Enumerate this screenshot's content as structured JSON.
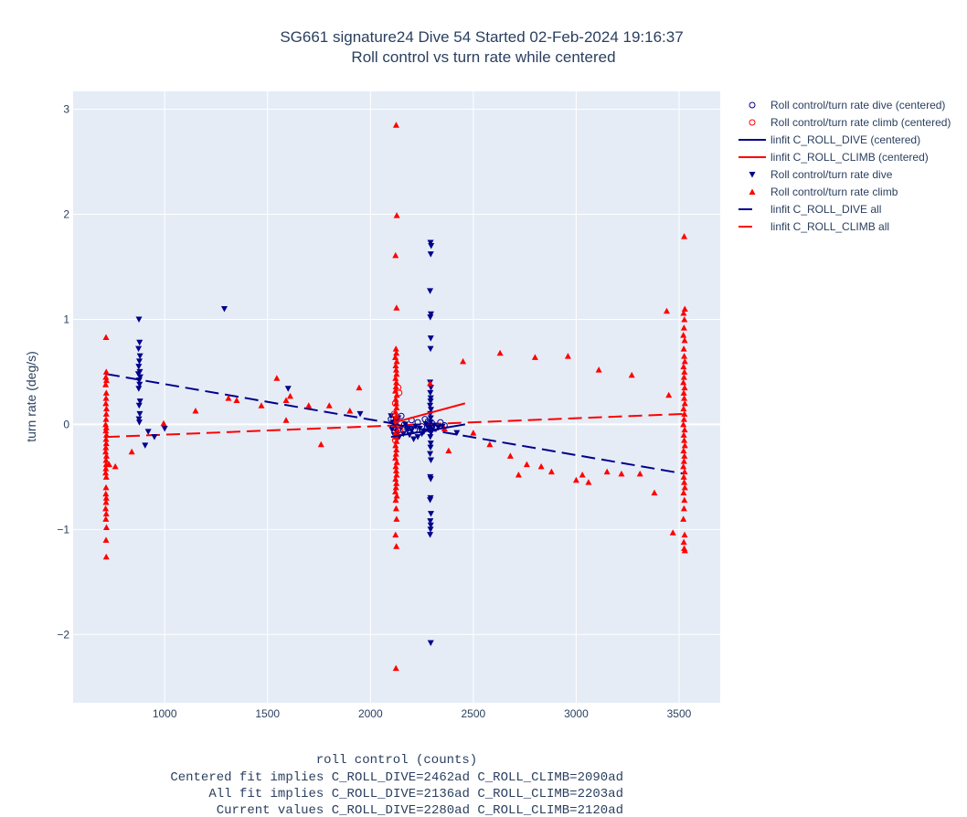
{
  "chart_data": {
    "type": "scatter",
    "title": [
      "SG661 signature24 Dive 54 Started 02-Feb-2024 19:16:37",
      "Roll control vs turn rate while centered"
    ],
    "xlabel_lines": [
      "roll control (counts)",
      "Centered fit implies C_ROLL_DIVE=2462ad C_ROLL_CLIMB=2090ad",
      "All fit implies C_ROLL_DIVE=2136ad C_ROLL_CLIMB=2203ad",
      "Current values C_ROLL_DIVE=2280ad C_ROLL_CLIMB=2120ad"
    ],
    "ylabel": "turn rate (deg/s)",
    "xlim": [
      555,
      3700
    ],
    "ylim": [
      -2.65,
      3.17
    ],
    "x_ticks": [
      1000,
      1500,
      2000,
      2500,
      3000,
      3500
    ],
    "x_tick_labels": [
      "1000",
      "1500",
      "2000",
      "2500",
      "3000",
      "3500"
    ],
    "y_ticks": [
      -2,
      -1,
      0,
      1,
      2,
      3
    ],
    "y_tick_labels": [
      "−2",
      "−1",
      "0",
      "1",
      "2",
      "3"
    ],
    "grid": true,
    "legend_position": "right",
    "colors": {
      "dive": "#00008b",
      "climb": "#ff0000",
      "plot_bg": "#e5ecf6",
      "grid": "#ffffff",
      "text": "#2a3f5f"
    },
    "series": [
      {
        "name": "Roll control/turn rate dive (centered)",
        "kind": "markers",
        "marker": "circle-open",
        "color": "#00008b",
        "points": [
          [
            2100,
            0.05
          ],
          [
            2110,
            -0.03
          ],
          [
            2120,
            0.02
          ],
          [
            2135,
            -0.06
          ],
          [
            2150,
            0.08
          ],
          [
            2165,
            0.0
          ],
          [
            2180,
            -0.04
          ],
          [
            2200,
            0.04
          ],
          [
            2215,
            -0.05
          ],
          [
            2230,
            0.02
          ],
          [
            2250,
            -0.02
          ],
          [
            2265,
            0.05
          ],
          [
            2280,
            0.03
          ],
          [
            2290,
            -0.05
          ],
          [
            2300,
            0.01
          ],
          [
            2320,
            -0.03
          ],
          [
            2340,
            0.02
          ],
          [
            2360,
            -0.01
          ]
        ]
      },
      {
        "name": "Roll control/turn rate climb (centered)",
        "kind": "markers",
        "marker": "circle-open",
        "color": "#ff0000",
        "points": [
          [
            2115,
            0.1
          ],
          [
            2120,
            0.2
          ],
          [
            2125,
            -0.1
          ],
          [
            2130,
            0.05
          ],
          [
            2135,
            0.35
          ],
          [
            2140,
            0.3
          ],
          [
            2145,
            -0.05
          ],
          [
            2120,
            -0.15
          ]
        ]
      },
      {
        "name": "linfit C_ROLL_DIVE (centered)",
        "kind": "line",
        "dash": "solid",
        "color": "#00008b",
        "points": [
          [
            2100,
            -0.12
          ],
          [
            2460,
            0.0
          ]
        ]
      },
      {
        "name": "linfit C_ROLL_CLIMB (centered)",
        "kind": "line",
        "dash": "solid",
        "color": "#ff0000",
        "points": [
          [
            2120,
            0.02
          ],
          [
            2460,
            0.2
          ]
        ]
      },
      {
        "name": "Roll control/turn rate dive",
        "kind": "markers",
        "marker": "triangle-down",
        "color": "#00008b",
        "points": [
          [
            875,
            1.0
          ],
          [
            878,
            0.78
          ],
          [
            873,
            0.72
          ],
          [
            880,
            0.65
          ],
          [
            877,
            0.6
          ],
          [
            874,
            0.55
          ],
          [
            879,
            0.5
          ],
          [
            872,
            0.48
          ],
          [
            881,
            0.45
          ],
          [
            876,
            0.42
          ],
          [
            878,
            0.38
          ],
          [
            874,
            0.34
          ],
          [
            880,
            0.22
          ],
          [
            876,
            0.18
          ],
          [
            879,
            0.1
          ],
          [
            875,
            0.05
          ],
          [
            877,
            0.02
          ],
          [
            920,
            -0.07
          ],
          [
            950,
            -0.12
          ],
          [
            1000,
            -0.04
          ],
          [
            1290,
            1.1
          ],
          [
            1600,
            0.34
          ],
          [
            1950,
            0.1
          ],
          [
            905,
            -0.2
          ],
          [
            2100,
            0.08
          ],
          [
            2105,
            -0.05
          ],
          [
            2110,
            0.02
          ],
          [
            2115,
            -0.1
          ],
          [
            2120,
            0.05
          ],
          [
            2125,
            -0.02
          ],
          [
            2130,
            -0.08
          ],
          [
            2135,
            0.06
          ],
          [
            2140,
            -0.12
          ],
          [
            2150,
            -0.03
          ],
          [
            2160,
            -0.09
          ],
          [
            2170,
            0.0
          ],
          [
            2180,
            -0.05
          ],
          [
            2190,
            -0.1
          ],
          [
            2200,
            -0.06
          ],
          [
            2210,
            -0.14
          ],
          [
            2220,
            -0.02
          ],
          [
            2230,
            -0.12
          ],
          [
            2240,
            -0.04
          ],
          [
            2250,
            -0.09
          ],
          [
            2260,
            -0.07
          ],
          [
            2270,
            0.0
          ],
          [
            2280,
            -0.03
          ],
          [
            2300,
            -0.05
          ],
          [
            2310,
            -0.01
          ],
          [
            2330,
            -0.03
          ],
          [
            2350,
            -0.02
          ],
          [
            2420,
            -0.08
          ],
          [
            2292,
            1.73
          ],
          [
            2295,
            1.7
          ],
          [
            2293,
            1.62
          ],
          [
            2290,
            1.27
          ],
          [
            2294,
            1.05
          ],
          [
            2291,
            1.02
          ],
          [
            2293,
            0.82
          ],
          [
            2292,
            0.72
          ],
          [
            2290,
            0.4
          ],
          [
            2294,
            0.35
          ],
          [
            2291,
            0.3
          ],
          [
            2293,
            0.25
          ],
          [
            2292,
            0.22
          ],
          [
            2290,
            0.18
          ],
          [
            2294,
            0.14
          ],
          [
            2291,
            0.1
          ],
          [
            2293,
            0.06
          ],
          [
            2292,
            0.02
          ],
          [
            2290,
            -0.03
          ],
          [
            2294,
            -0.08
          ],
          [
            2291,
            -0.12
          ],
          [
            2293,
            -0.18
          ],
          [
            2292,
            -0.22
          ],
          [
            2290,
            -0.28
          ],
          [
            2294,
            -0.34
          ],
          [
            2291,
            -0.5
          ],
          [
            2293,
            -0.52
          ],
          [
            2292,
            -0.7
          ],
          [
            2290,
            -0.72
          ],
          [
            2294,
            -0.85
          ],
          [
            2291,
            -0.92
          ],
          [
            2293,
            -0.96
          ],
          [
            2292,
            -1.0
          ],
          [
            2290,
            -1.05
          ],
          [
            2293,
            -2.08
          ]
        ]
      },
      {
        "name": "Roll control/turn rate climb",
        "kind": "markers",
        "marker": "triangle-up",
        "color": "#ff0000",
        "points": [
          [
            715,
            0.83
          ],
          [
            716,
            0.5
          ],
          [
            714,
            0.45
          ],
          [
            717,
            0.42
          ],
          [
            713,
            0.38
          ],
          [
            716,
            0.3
          ],
          [
            715,
            0.25
          ],
          [
            714,
            0.2
          ],
          [
            717,
            0.15
          ],
          [
            716,
            0.1
          ],
          [
            715,
            0.05
          ],
          [
            713,
            0.0
          ],
          [
            716,
            -0.03
          ],
          [
            714,
            -0.06
          ],
          [
            717,
            -0.1
          ],
          [
            715,
            -0.14
          ],
          [
            716,
            -0.18
          ],
          [
            714,
            -0.22
          ],
          [
            713,
            -0.26
          ],
          [
            717,
            -0.3
          ],
          [
            715,
            -0.34
          ],
          [
            716,
            -0.38
          ],
          [
            714,
            -0.42
          ],
          [
            713,
            -0.46
          ],
          [
            716,
            -0.5
          ],
          [
            715,
            -0.6
          ],
          [
            714,
            -0.66
          ],
          [
            716,
            -0.7
          ],
          [
            715,
            -0.74
          ],
          [
            713,
            -0.8
          ],
          [
            716,
            -0.85
          ],
          [
            714,
            -0.9
          ],
          [
            717,
            -0.98
          ],
          [
            715,
            -1.1
          ],
          [
            716,
            -1.26
          ],
          [
            730,
            -0.38
          ],
          [
            760,
            -0.4
          ],
          [
            840,
            -0.26
          ],
          [
            995,
            0.01
          ],
          [
            1150,
            0.13
          ],
          [
            1310,
            0.25
          ],
          [
            1350,
            0.23
          ],
          [
            1470,
            0.18
          ],
          [
            1545,
            0.44
          ],
          [
            1590,
            0.23
          ],
          [
            1610,
            0.27
          ],
          [
            1590,
            0.04
          ],
          [
            1700,
            0.18
          ],
          [
            1760,
            -0.19
          ],
          [
            1800,
            0.18
          ],
          [
            1900,
            0.13
          ],
          [
            1945,
            0.35
          ],
          [
            2125,
            2.85
          ],
          [
            2128,
            1.99
          ],
          [
            2122,
            1.61
          ],
          [
            2127,
            1.11
          ],
          [
            2124,
            0.72
          ],
          [
            2126,
            0.68
          ],
          [
            2121,
            0.64
          ],
          [
            2128,
            0.6
          ],
          [
            2123,
            0.56
          ],
          [
            2125,
            0.52
          ],
          [
            2127,
            0.48
          ],
          [
            2122,
            0.44
          ],
          [
            2126,
            0.4
          ],
          [
            2124,
            0.36
          ],
          [
            2121,
            0.32
          ],
          [
            2128,
            0.28
          ],
          [
            2123,
            0.24
          ],
          [
            2125,
            0.2
          ],
          [
            2127,
            0.16
          ],
          [
            2122,
            0.12
          ],
          [
            2126,
            0.08
          ],
          [
            2124,
            0.04
          ],
          [
            2121,
            0.0
          ],
          [
            2128,
            -0.04
          ],
          [
            2123,
            -0.08
          ],
          [
            2125,
            -0.12
          ],
          [
            2127,
            -0.16
          ],
          [
            2122,
            -0.2
          ],
          [
            2126,
            -0.24
          ],
          [
            2124,
            -0.28
          ],
          [
            2121,
            -0.32
          ],
          [
            2128,
            -0.36
          ],
          [
            2123,
            -0.4
          ],
          [
            2125,
            -0.44
          ],
          [
            2127,
            -0.48
          ],
          [
            2122,
            -0.52
          ],
          [
            2126,
            -0.56
          ],
          [
            2124,
            -0.6
          ],
          [
            2121,
            -0.64
          ],
          [
            2128,
            -0.68
          ],
          [
            2123,
            -0.72
          ],
          [
            2125,
            -0.8
          ],
          [
            2127,
            -0.9
          ],
          [
            2122,
            -1.05
          ],
          [
            2126,
            -1.16
          ],
          [
            2124,
            -2.32
          ],
          [
            2290,
            0.39
          ],
          [
            2360,
            -0.04
          ],
          [
            2380,
            -0.25
          ],
          [
            2450,
            0.6
          ],
          [
            2500,
            -0.08
          ],
          [
            2580,
            -0.19
          ],
          [
            2630,
            0.68
          ],
          [
            2680,
            -0.3
          ],
          [
            2720,
            -0.48
          ],
          [
            2760,
            -0.38
          ],
          [
            2800,
            0.64
          ],
          [
            2830,
            -0.4
          ],
          [
            2880,
            -0.45
          ],
          [
            2960,
            0.65
          ],
          [
            3000,
            -0.53
          ],
          [
            3030,
            -0.48
          ],
          [
            3060,
            -0.55
          ],
          [
            3110,
            0.52
          ],
          [
            3150,
            -0.45
          ],
          [
            3220,
            -0.47
          ],
          [
            3270,
            0.47
          ],
          [
            3310,
            -0.47
          ],
          [
            3380,
            -0.65
          ],
          [
            3440,
            1.08
          ],
          [
            3450,
            0.28
          ],
          [
            3470,
            -1.03
          ],
          [
            3525,
            1.79
          ],
          [
            3528,
            1.1
          ],
          [
            3522,
            1.06
          ],
          [
            3526,
            1.0
          ],
          [
            3524,
            0.92
          ],
          [
            3521,
            0.85
          ],
          [
            3527,
            0.8
          ],
          [
            3523,
            0.72
          ],
          [
            3525,
            0.65
          ],
          [
            3528,
            0.6
          ],
          [
            3522,
            0.55
          ],
          [
            3526,
            0.5
          ],
          [
            3524,
            0.45
          ],
          [
            3521,
            0.4
          ],
          [
            3527,
            0.35
          ],
          [
            3523,
            0.3
          ],
          [
            3525,
            0.25
          ],
          [
            3528,
            0.2
          ],
          [
            3522,
            0.15
          ],
          [
            3526,
            0.1
          ],
          [
            3524,
            0.05
          ],
          [
            3521,
            0.0
          ],
          [
            3527,
            -0.05
          ],
          [
            3523,
            -0.1
          ],
          [
            3525,
            -0.15
          ],
          [
            3528,
            -0.2
          ],
          [
            3522,
            -0.25
          ],
          [
            3526,
            -0.3
          ],
          [
            3524,
            -0.35
          ],
          [
            3521,
            -0.4
          ],
          [
            3527,
            -0.45
          ],
          [
            3523,
            -0.5
          ],
          [
            3525,
            -0.55
          ],
          [
            3528,
            -0.6
          ],
          [
            3522,
            -0.65
          ],
          [
            3526,
            -0.72
          ],
          [
            3524,
            -0.8
          ],
          [
            3521,
            -0.9
          ],
          [
            3527,
            -1.05
          ],
          [
            3523,
            -1.12
          ],
          [
            3525,
            -1.18
          ],
          [
            3528,
            -1.2
          ]
        ]
      },
      {
        "name": "linfit C_ROLL_DIVE all",
        "kind": "line",
        "dash": "dash",
        "color": "#00008b",
        "points": [
          [
            715,
            0.48
          ],
          [
            3525,
            -0.47
          ]
        ]
      },
      {
        "name": "linfit C_ROLL_CLIMB all",
        "kind": "line",
        "dash": "dash",
        "color": "#ff0000",
        "points": [
          [
            715,
            -0.12
          ],
          [
            3525,
            0.1
          ]
        ]
      }
    ]
  }
}
